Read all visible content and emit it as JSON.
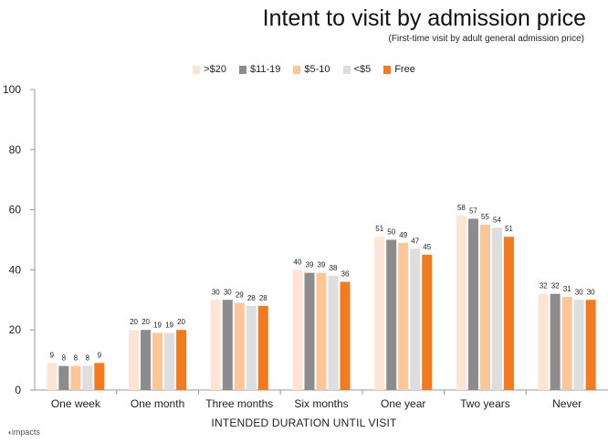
{
  "title": "Intent to visit by admission price",
  "subtitle": "(First-time visit by adult general admission price)",
  "brand": "impacts",
  "chart_data": {
    "type": "bar",
    "title": "Intent to visit by admission price",
    "subtitle": "(First-time visit by adult general admission price)",
    "xlabel": "INTENDED DURATION UNTIL VISIT",
    "ylabel": "",
    "ylim": [
      0,
      100
    ],
    "yticks": [
      0,
      20,
      40,
      60,
      80,
      100
    ],
    "grid": false,
    "legend_position": "top",
    "categories": [
      "One week",
      "One month",
      "Three months",
      "Six months",
      "One year",
      "Two years",
      "Never"
    ],
    "series": [
      {
        "name": ">$20",
        "color": "#fde4d5",
        "values": [
          9,
          20,
          30,
          40,
          51,
          58,
          32
        ]
      },
      {
        "name": "$11-19",
        "color": "#8c8c8c",
        "values": [
          8,
          20,
          30,
          39,
          50,
          57,
          32
        ]
      },
      {
        "name": "$5-10",
        "color": "#fcc699",
        "values": [
          8,
          19,
          29,
          39,
          49,
          55,
          31
        ]
      },
      {
        "name": "<$5",
        "color": "#dedede",
        "values": [
          8,
          19,
          28,
          38,
          47,
          54,
          30
        ]
      },
      {
        "name": "Free",
        "color": "#f47a1f",
        "values": [
          9,
          20,
          28,
          36,
          45,
          51,
          30
        ]
      }
    ]
  }
}
